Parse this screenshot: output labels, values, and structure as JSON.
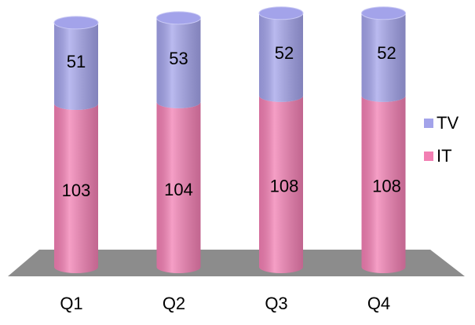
{
  "chart_data": {
    "type": "bar",
    "stacked": true,
    "categories": [
      "Q1",
      "Q2",
      "Q3",
      "Q4"
    ],
    "series": [
      {
        "name": "IT",
        "color": "#f27fb3",
        "values": [
          103,
          104,
          108,
          108
        ]
      },
      {
        "name": "TV",
        "color": "#a3a3ea",
        "values": [
          51,
          53,
          52,
          52
        ]
      }
    ],
    "legend": "right"
  }
}
